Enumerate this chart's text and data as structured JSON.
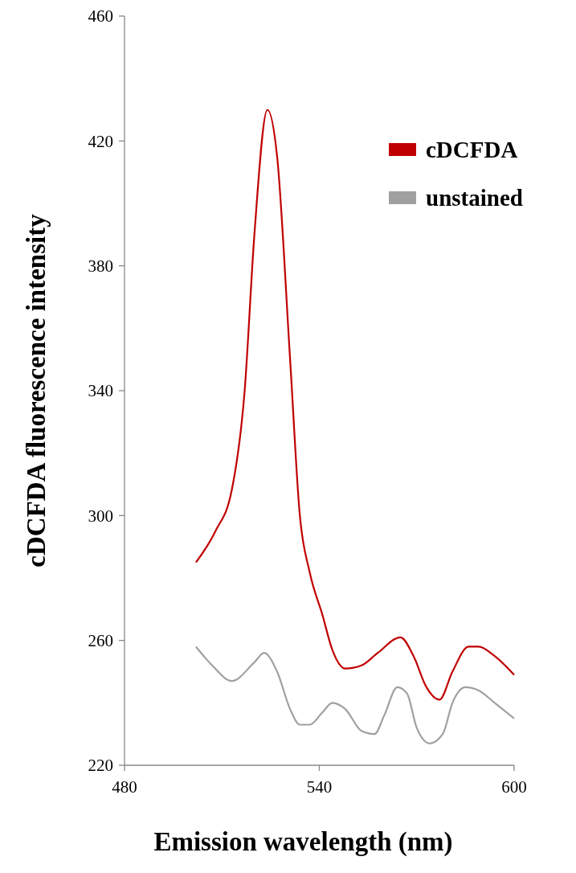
{
  "chart_data": {
    "type": "line",
    "xlabel": "Emission wavelength (nm)",
    "ylabel": "cDCFDA fluorescence intensity",
    "xlim": [
      480,
      600
    ],
    "xticks": [
      480,
      540,
      600
    ],
    "ylim": [
      220,
      460
    ],
    "yticks": [
      220,
      260,
      300,
      340,
      380,
      420,
      460
    ],
    "grid": false,
    "legend": "top right",
    "marker": "none",
    "line_style": "solid",
    "series": [
      {
        "name": "cDCFDA",
        "color": "#c00000",
        "x": [
          502,
          508,
          513,
          517,
          520,
          524,
          527,
          531,
          534,
          537,
          541,
          544,
          548,
          553,
          558,
          565,
          569,
          573,
          577,
          581,
          586,
          589,
          594,
          600
        ],
        "values": [
          285,
          295,
          308,
          340,
          390,
          430,
          415,
          350,
          300,
          282,
          268,
          257,
          251,
          252,
          256,
          261,
          255,
          245,
          241,
          250,
          258,
          258,
          255,
          249
        ]
      },
      {
        "name": "unstained",
        "color": "#a0a0a0",
        "x": [
          502,
          507,
          513,
          520,
          523,
          527,
          531,
          534,
          537,
          541,
          544,
          548,
          553,
          557,
          560,
          564,
          567,
          570,
          574,
          578,
          581,
          585,
          589,
          594,
          600
        ],
        "values": [
          258,
          252,
          247,
          253,
          256,
          250,
          238,
          233,
          233,
          237,
          240,
          238,
          231,
          230,
          236,
          245,
          243,
          232,
          227,
          230,
          240,
          245,
          244,
          240,
          235
        ]
      }
    ]
  }
}
